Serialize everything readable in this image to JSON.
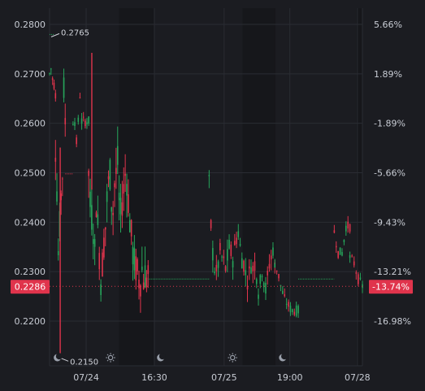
{
  "chart_data": {
    "type": "candlestick",
    "x_tick_labels": [
      "07/24",
      "16:30",
      "07/25",
      "19:00",
      "07/28"
    ],
    "left_axis": {
      "tick_labels": [
        "0.2800",
        "0.2700",
        "0.2600",
        "0.2500",
        "0.2400",
        "0.2300",
        "0.2200"
      ],
      "ylim": [
        0.2135,
        0.2815
      ]
    },
    "right_axis": {
      "tick_labels": [
        "5.66%",
        "1.89%",
        "-1.89%",
        "-5.66%",
        "-9.43%",
        "-13.21%",
        "-16.98%"
      ]
    },
    "current_price": {
      "value": 0.2286,
      "label": "0.2286",
      "percent_label": "-13.74%"
    },
    "annotations": [
      {
        "label": "0.2765",
        "value": 0.2765,
        "type": "high"
      },
      {
        "label": "0.2150",
        "value": 0.215,
        "type": "low"
      }
    ],
    "session_markers": [
      "moon",
      "sun",
      "moon",
      "sun",
      "moon"
    ],
    "colors": {
      "up": "#26a65b",
      "down": "#e0344c",
      "background": "#1b1c21",
      "dark_band": "#16171b",
      "grid": "#2a2c33",
      "text": "#c8ccd4",
      "price_label_bg": "#e0344c"
    },
    "grid": true,
    "segments": [
      {
        "start": 0.0,
        "end": 0.019,
        "v": [
          0.269,
          0.27,
          0.268,
          0.267,
          0.265
        ],
        "vol": 0.002
      },
      {
        "start": 0.019,
        "end": 0.05,
        "v": [
          0.255,
          0.247,
          0.235,
          0.24,
          0.246,
          0.25,
          0.266,
          0.26
        ],
        "vol": 0.006
      },
      {
        "start": 0.05,
        "end": 0.075,
        "v": [
          0.25,
          0.25,
          0.25
        ],
        "vol": 0
      },
      {
        "start": 0.075,
        "end": 0.125,
        "v": [
          0.26,
          0.26,
          0.256,
          0.26,
          0.265,
          0.26,
          0.26,
          0.26,
          0.26,
          0.26
        ],
        "vol": 0.002
      },
      {
        "start": 0.125,
        "end": 0.315,
        "v": [
          0.25,
          0.244,
          0.242,
          0.24,
          0.235,
          0.245,
          0.24,
          0.235,
          0.23,
          0.233,
          0.237,
          0.24,
          0.245,
          0.248,
          0.25,
          0.245,
          0.243,
          0.248,
          0.25,
          0.252,
          0.245,
          0.242,
          0.245,
          0.247,
          0.25,
          0.249,
          0.245,
          0.241,
          0.238,
          0.235,
          0.233,
          0.232,
          0.231,
          0.23,
          0.23,
          0.232,
          0.23,
          0.231,
          0.23,
          0.231
        ],
        "vol": 0.007
      },
      {
        "start": 0.315,
        "end": 0.51,
        "v": [
          0.23,
          0.23,
          0.23
        ],
        "vol": 0
      },
      {
        "start": 0.51,
        "end": 0.72,
        "v": [
          0.248,
          0.24,
          0.235,
          0.232,
          0.231,
          0.233,
          0.235,
          0.234,
          0.233,
          0.232,
          0.234,
          0.236,
          0.235,
          0.234,
          0.236,
          0.238,
          0.239,
          0.236,
          0.234,
          0.233,
          0.231,
          0.23,
          0.231,
          0.233,
          0.232,
          0.233,
          0.231,
          0.228,
          0.229,
          0.232,
          0.23,
          0.228,
          0.23,
          0.233,
          0.234,
          0.236,
          0.232
        ],
        "vol": 0.004
      },
      {
        "start": 0.72,
        "end": 0.795,
        "v": [
          0.233,
          0.231,
          0.228,
          0.226,
          0.225,
          0.224,
          0.224,
          0.224
        ],
        "vol": 0.002
      },
      {
        "start": 0.795,
        "end": 0.91,
        "v": [
          0.23,
          0.23,
          0.23
        ],
        "vol": 0
      },
      {
        "start": 0.91,
        "end": 0.96,
        "v": [
          0.239,
          0.235,
          0.235,
          0.24,
          0.24
        ],
        "vol": 0.002
      },
      {
        "start": 0.96,
        "end": 1.0,
        "v": [
          0.234,
          0.233,
          0.23,
          0.2286
        ],
        "vol": 0.002
      }
    ]
  }
}
